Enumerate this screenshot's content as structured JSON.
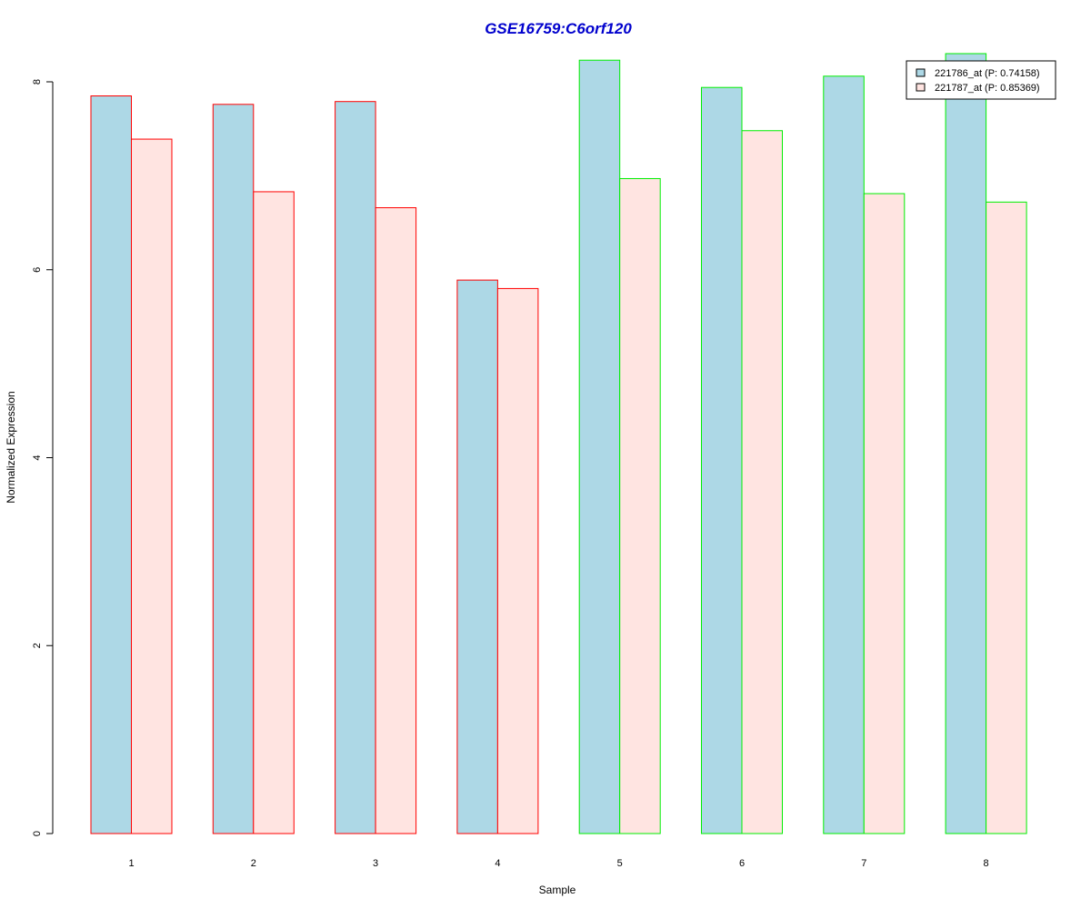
{
  "chart_data": {
    "type": "bar",
    "title": "GSE16759:C6orf120",
    "xlabel": "Sample",
    "ylabel": "Normalized Expression",
    "categories": [
      "1",
      "2",
      "3",
      "4",
      "5",
      "6",
      "7",
      "8"
    ],
    "ylim": [
      0,
      8.3
    ],
    "yticks": [
      "0",
      "2",
      "4",
      "6",
      "8"
    ],
    "series": [
      {
        "name": "221786_at (P: 0.74158)",
        "fill": "#add8e6",
        "values": [
          7.85,
          7.76,
          7.79,
          5.89,
          8.23,
          7.94,
          8.06,
          8.3
        ]
      },
      {
        "name": "221787_at (P: 0.85369)",
        "fill": "#ffe4e1",
        "values": [
          7.39,
          6.83,
          6.66,
          5.8,
          6.97,
          7.48,
          6.81,
          6.72
        ]
      }
    ],
    "group_border_colors": [
      "#ff0000",
      "#ff0000",
      "#ff0000",
      "#ff0000",
      "#00ee00",
      "#00ee00",
      "#00ee00",
      "#00ee00"
    ],
    "title_color": "#0000cd",
    "legend_position": "top-right",
    "grid": false
  }
}
